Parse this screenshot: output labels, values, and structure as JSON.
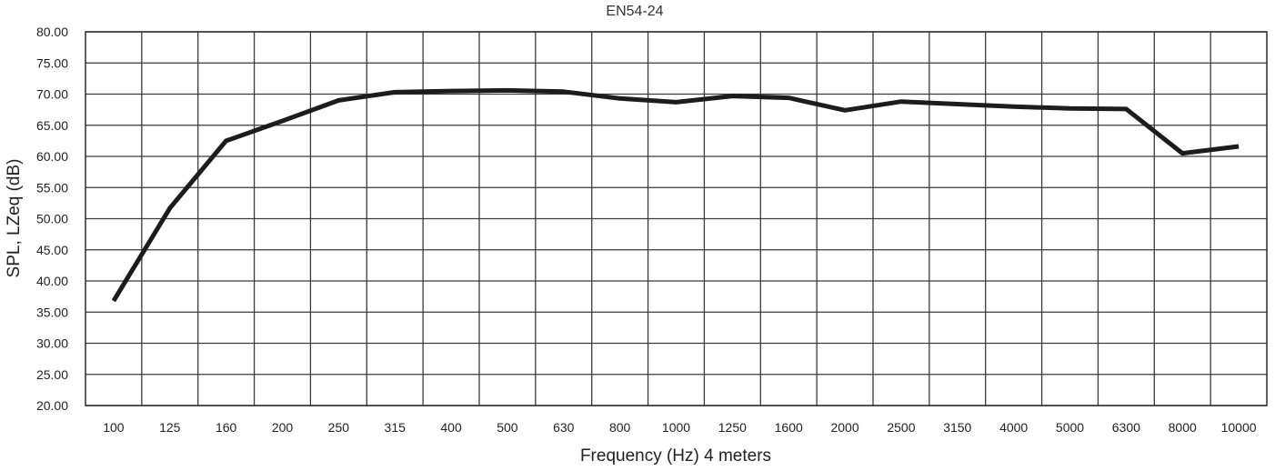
{
  "chart_data": {
    "type": "line",
    "title": "EN54-24",
    "xlabel": "Frequency (Hz) 4 meters",
    "ylabel": "SPL, LZeq (dB)",
    "ylim": [
      20,
      80
    ],
    "ytick_step": 5,
    "yticks": [
      "20.00",
      "25.00",
      "30.00",
      "35.00",
      "40.00",
      "45.00",
      "50.00",
      "55.00",
      "60.00",
      "65.00",
      "70.00",
      "75.00",
      "80.00"
    ],
    "grid": true,
    "legend": null,
    "categories": [
      "100",
      "125",
      "160",
      "200",
      "250",
      "315",
      "400",
      "500",
      "630",
      "800",
      "1000",
      "1250",
      "1600",
      "2000",
      "2500",
      "3150",
      "4000",
      "5000",
      "6300",
      "8000",
      "10000"
    ],
    "series": [
      {
        "name": "SPL",
        "color": "#1c1c1c",
        "values": [
          36.8,
          51.7,
          62.5,
          65.7,
          69.0,
          70.3,
          70.5,
          70.6,
          70.4,
          69.3,
          68.7,
          69.7,
          69.4,
          67.4,
          68.8,
          68.4,
          68.0,
          67.7,
          67.6,
          60.5,
          61.6
        ]
      }
    ]
  }
}
